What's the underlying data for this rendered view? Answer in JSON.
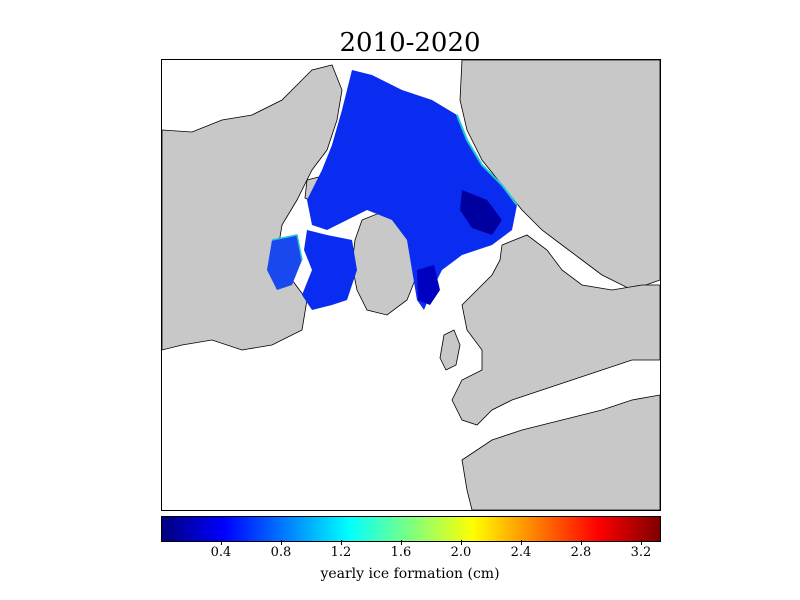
{
  "title": "2010-2020",
  "colorbar": {
    "label": "yearly ice formation (cm)",
    "min": 0.0,
    "max": 3.32,
    "ticks": [
      "0.4",
      "0.8",
      "1.2",
      "1.6",
      "2.0",
      "2.4",
      "2.8",
      "3.2"
    ],
    "colormap": "jet",
    "stops": [
      "#00007f",
      "#0000ff",
      "#007fff",
      "#00ffff",
      "#7fff7f",
      "#ffff00",
      "#ff7f00",
      "#ff0000",
      "#7f0000"
    ]
  },
  "colors": {
    "land": "#c8c8c8",
    "ocean": "#ffffff",
    "coastline": "#000000",
    "ice_dominant": "#0a2cf0",
    "ice_low": "#0000a0",
    "ice_edge": "#1ec8d2"
  }
}
